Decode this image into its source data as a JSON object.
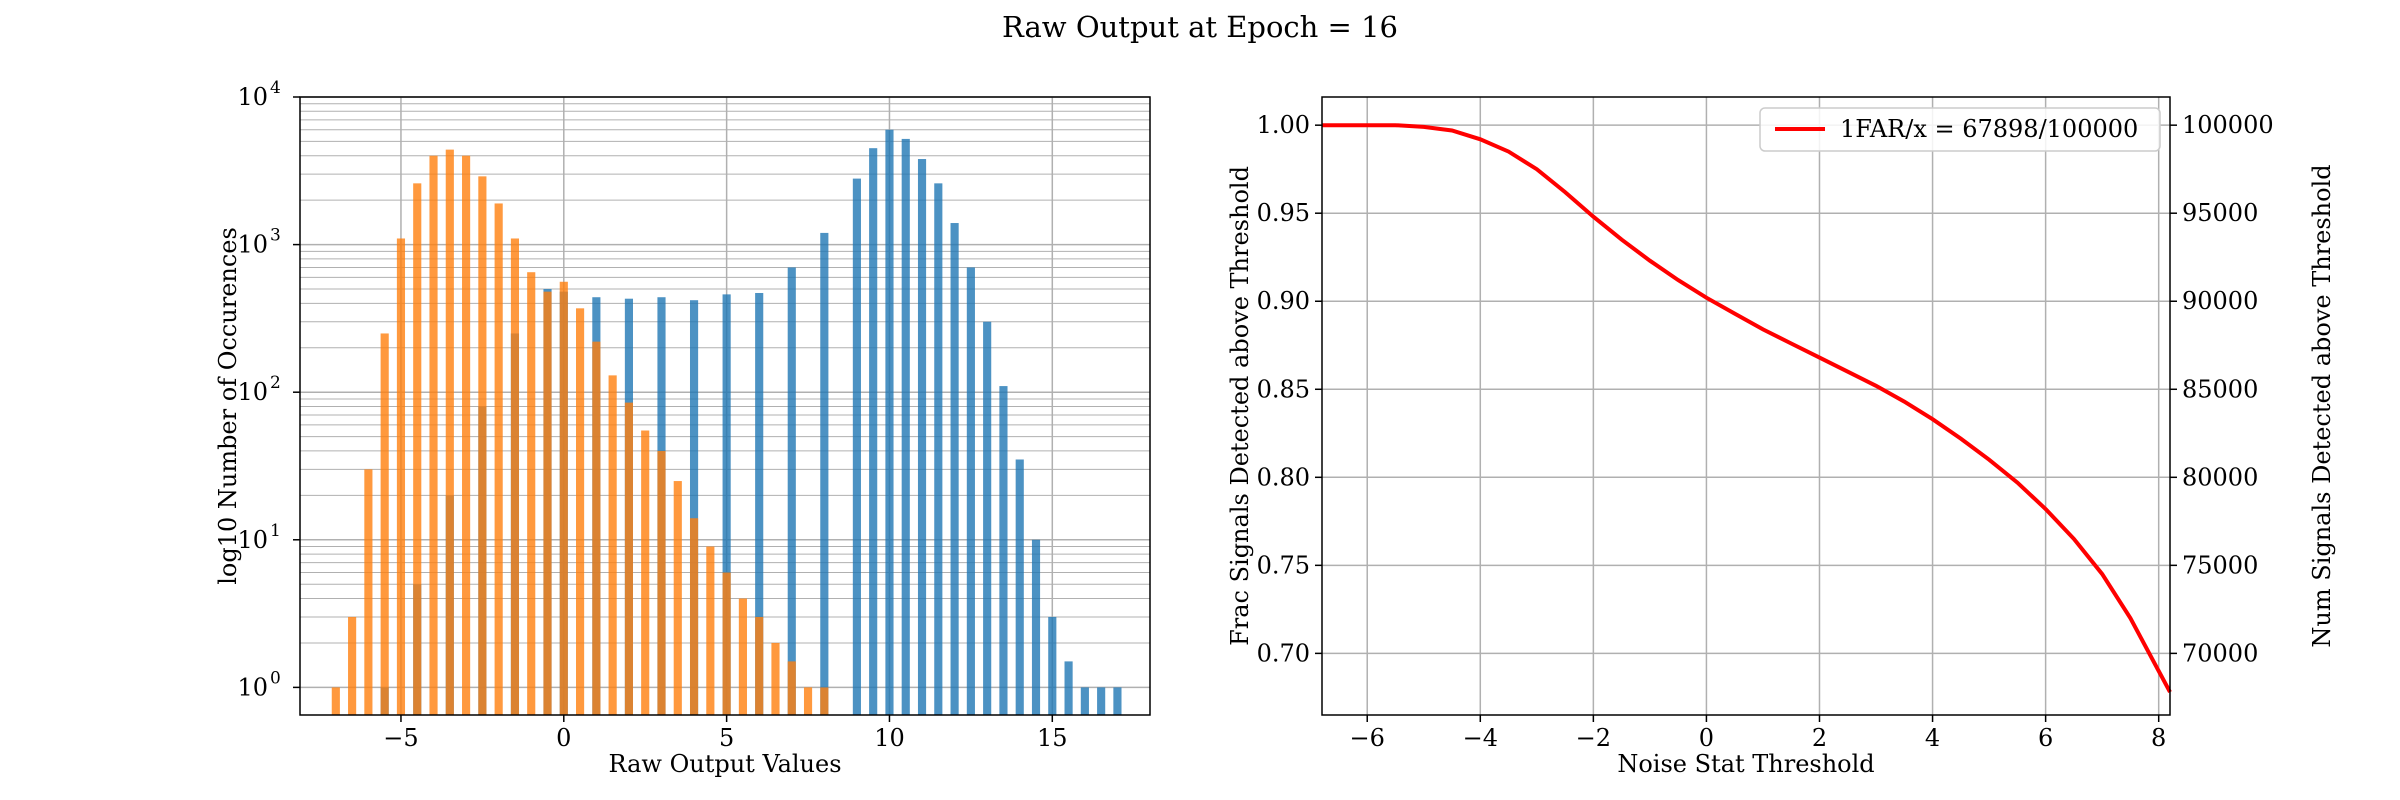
{
  "figure_title": "Raw Output at Epoch = 16",
  "colors": {
    "signal": "#1f77b4",
    "noise": "#ff7f0e",
    "curve": "#ff0000",
    "grid": "#b0b0b0"
  },
  "chart_data": [
    {
      "type": "bar",
      "subtype": "histogram",
      "xlabel": "Raw Output Values",
      "ylabel": "log10 Number of Occurences",
      "yscale": "log",
      "xlim": [
        -8.1,
        18.0
      ],
      "ylim": [
        0.65,
        10000
      ],
      "xticks": [
        -5,
        0,
        5,
        10,
        15
      ],
      "xtick_labels": [
        "−5",
        "0",
        "5",
        "10",
        "15"
      ],
      "yticks": [
        1,
        10,
        100,
        1000,
        10000
      ],
      "ytick_labels": [
        "10",
        "10",
        "10",
        "10",
        "10"
      ],
      "ytick_exponents": [
        "0",
        "1",
        "2",
        "3",
        "4"
      ],
      "grid": true,
      "legend": "none",
      "bin_width": 0.25,
      "series": [
        {
          "color": "#1f77b4",
          "alpha": 0.8,
          "x": [
            -5.5,
            -4.5,
            -3.5,
            -2.5,
            -1.5,
            -0.5,
            0,
            1,
            2,
            3,
            4,
            5,
            6,
            7,
            8,
            9,
            9.5,
            10,
            10.5,
            11,
            11.5,
            12,
            12.5,
            13,
            13.5,
            14,
            14.5,
            15,
            15.5,
            16,
            16.5,
            17
          ],
          "values": [
            1,
            5,
            20,
            80,
            250,
            500,
            480,
            440,
            430,
            440,
            420,
            460,
            470,
            700,
            1200,
            2800,
            4500,
            6000,
            5200,
            3800,
            2600,
            1400,
            700,
            300,
            110,
            35,
            10,
            3,
            1.5,
            1,
            1,
            1
          ]
        },
        {
          "color": "#ff7f0e",
          "alpha": 0.8,
          "x": [
            -7,
            -6.5,
            -6,
            -5.5,
            -5,
            -4.5,
            -4,
            -3.5,
            -3,
            -2.5,
            -2,
            -1.5,
            -1,
            -0.5,
            0,
            0.5,
            1,
            1.5,
            2,
            2.5,
            3,
            3.5,
            4,
            4.5,
            5,
            5.5,
            6,
            6.5,
            7,
            7.5,
            8
          ],
          "values": [
            1,
            3,
            30,
            250,
            1100,
            2600,
            4000,
            4400,
            4000,
            2900,
            1900,
            1100,
            650,
            480,
            560,
            370,
            220,
            130,
            85,
            55,
            40,
            25,
            14,
            9,
            6,
            4,
            3,
            2,
            1.5,
            1,
            1
          ]
        }
      ]
    },
    {
      "type": "line",
      "xlabel": "Noise Stat Threshold",
      "ylabel": "Frac Signals Detected above Threshold",
      "ylabel_right": "Num Signals Detected above Threshold",
      "xlim": [
        -6.8,
        8.2
      ],
      "ylim": [
        0.665,
        1.016
      ],
      "ylim_right": [
        66500,
        101600
      ],
      "xticks": [
        -6,
        -4,
        -2,
        0,
        2,
        4,
        6,
        8
      ],
      "xtick_labels": [
        "−6",
        "−4",
        "−2",
        "0",
        "2",
        "4",
        "6",
        "8"
      ],
      "yticks": [
        0.7,
        0.75,
        0.8,
        0.85,
        0.9,
        0.95,
        1.0
      ],
      "ytick_labels": [
        "0.70",
        "0.75",
        "0.80",
        "0.85",
        "0.90",
        "0.95",
        "1.00"
      ],
      "yticks_right": [
        70000,
        75000,
        80000,
        85000,
        90000,
        95000,
        100000
      ],
      "ytick_labels_right": [
        "70000",
        "75000",
        "80000",
        "85000",
        "90000",
        "95000",
        "100000"
      ],
      "grid": true,
      "legend": "top-right",
      "series": [
        {
          "name": "1FAR/x = 67898/100000",
          "color": "#ff0000",
          "x": [
            -6.8,
            -6,
            -5.5,
            -5,
            -4.5,
            -4,
            -3.5,
            -3,
            -2.5,
            -2,
            -1.5,
            -1,
            -0.5,
            0,
            0.5,
            1,
            1.5,
            2,
            2.5,
            3,
            3.5,
            4,
            4.5,
            5,
            5.5,
            6,
            6.5,
            7,
            7.5,
            7.8,
            8.0,
            8.2
          ],
          "values": [
            1.0,
            1.0,
            1.0,
            0.999,
            0.997,
            0.992,
            0.985,
            0.975,
            0.962,
            0.948,
            0.935,
            0.923,
            0.912,
            0.902,
            0.893,
            0.884,
            0.876,
            0.868,
            0.86,
            0.852,
            0.843,
            0.833,
            0.822,
            0.81,
            0.797,
            0.782,
            0.765,
            0.745,
            0.72,
            0.702,
            0.69,
            0.678
          ]
        }
      ]
    }
  ]
}
